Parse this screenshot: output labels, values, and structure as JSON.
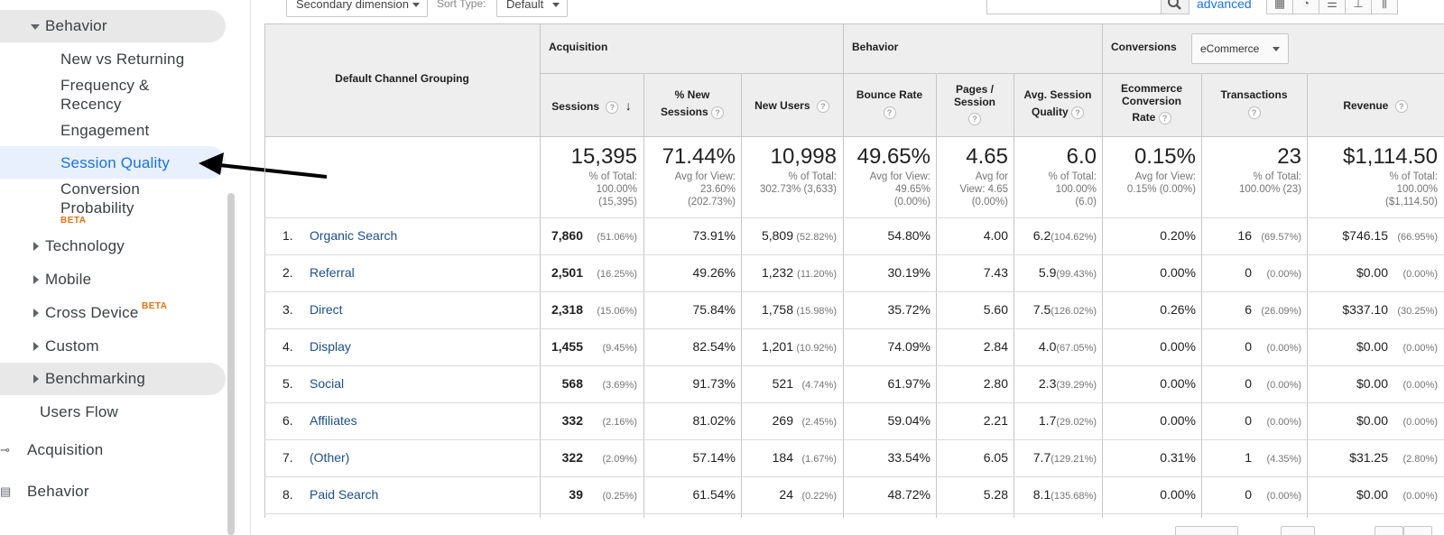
{
  "sidebar": {
    "behavior_label": "Behavior",
    "sub_items": [
      {
        "label": "New vs Returning"
      },
      {
        "label": "Frequency &"
      },
      {
        "label": "Recency"
      },
      {
        "label": "Engagement"
      },
      {
        "label": "Session Quality"
      },
      {
        "label": "Conversion"
      },
      {
        "label": "Probability"
      }
    ],
    "beta_label": "BETA",
    "collapsed_items": [
      {
        "label": "Technology"
      },
      {
        "label": "Mobile"
      },
      {
        "label": "Cross Device"
      },
      {
        "label": "Custom"
      },
      {
        "label": "Benchmarking"
      }
    ],
    "users_flow": "Users Flow",
    "acquisition": "Acquisition",
    "behavior_section": "Behavior"
  },
  "toolbar": {
    "secondary_dimension": "Secondary dimension",
    "sort_type_label": "Sort Type:",
    "sort_type_value": "Default",
    "advanced": "advanced"
  },
  "table": {
    "dimension_header": "Default Channel Grouping",
    "groups": {
      "acquisition": "Acquisition",
      "behavior": "Behavior",
      "conversions": "Conversions",
      "conversions_select": "eCommerce"
    },
    "columns": {
      "sessions": "Sessions",
      "new_sessions_1": "% New",
      "new_sessions_2": "Sessions",
      "new_users": "New Users",
      "bounce_rate": "Bounce Rate",
      "pages_session_1": "Pages /",
      "pages_session_2": "Session",
      "asq_1": "Avg. Session",
      "asq_2": "Quality",
      "ecr_1": "Ecommerce",
      "ecr_2": "Conversion",
      "ecr_3": "Rate",
      "transactions": "Transactions",
      "revenue": "Revenue"
    },
    "totals": {
      "sessions": "15,395",
      "sessions_s1": "% of Total:",
      "sessions_s2": "100.00%",
      "sessions_s3": "(15,395)",
      "new_sessions": "71.44%",
      "new_sessions_s1": "Avg for View:",
      "new_sessions_s2": "23.60%",
      "new_sessions_s3": "(202.73%)",
      "new_users": "10,998",
      "new_users_s1": "% of Total:",
      "new_users_s2": "302.73% (3,633)",
      "bounce": "49.65%",
      "bounce_s1": "Avg for View:",
      "bounce_s2": "49.65%",
      "bounce_s3": "(0.00%)",
      "pages": "4.65",
      "pages_s1": "Avg for",
      "pages_s2": "View: 4.65",
      "pages_s3": "(0.00%)",
      "asq": "6.0",
      "asq_s1": "% of Total:",
      "asq_s2": "100.00%",
      "asq_s3": "(6.0)",
      "ecr": "0.15%",
      "ecr_s1": "Avg for View:",
      "ecr_s2": "0.15% (0.00%)",
      "transactions": "23",
      "transactions_s1": "% of Total:",
      "transactions_s2": "100.00% (23)",
      "revenue": "$1,114.50",
      "revenue_s1": "% of Total:",
      "revenue_s2": "100.00%",
      "revenue_s3": "($1,114.50)"
    },
    "rows": [
      {
        "idx": "1.",
        "name": "Organic Search",
        "sessions": "7,860",
        "sessions_pct": "(51.06%)",
        "new_sessions": "73.91%",
        "new_users": "5,809",
        "new_users_pct": "(52.82%)",
        "bounce": "54.80%",
        "pages": "4.00",
        "asq": "6.2",
        "asq_pct": "(104.62%)",
        "ecr": "0.20%",
        "transactions": "16",
        "transactions_pct": "(69.57%)",
        "revenue": "$746.15",
        "revenue_pct": "(66.95%)"
      },
      {
        "idx": "2.",
        "name": "Referral",
        "sessions": "2,501",
        "sessions_pct": "(16.25%)",
        "new_sessions": "49.26%",
        "new_users": "1,232",
        "new_users_pct": "(11.20%)",
        "bounce": "30.19%",
        "pages": "7.43",
        "asq": "5.9",
        "asq_pct": "(99.43%)",
        "ecr": "0.00%",
        "transactions": "0",
        "transactions_pct": "(0.00%)",
        "revenue": "$0.00",
        "revenue_pct": "(0.00%)"
      },
      {
        "idx": "3.",
        "name": "Direct",
        "sessions": "2,318",
        "sessions_pct": "(15.06%)",
        "new_sessions": "75.84%",
        "new_users": "1,758",
        "new_users_pct": "(15.98%)",
        "bounce": "35.72%",
        "pages": "5.60",
        "asq": "7.5",
        "asq_pct": "(126.02%)",
        "ecr": "0.26%",
        "transactions": "6",
        "transactions_pct": "(26.09%)",
        "revenue": "$337.10",
        "revenue_pct": "(30.25%)"
      },
      {
        "idx": "4.",
        "name": "Display",
        "sessions": "1,455",
        "sessions_pct": "(9.45%)",
        "new_sessions": "82.54%",
        "new_users": "1,201",
        "new_users_pct": "(10.92%)",
        "bounce": "74.09%",
        "pages": "2.84",
        "asq": "4.0",
        "asq_pct": "(67.05%)",
        "ecr": "0.00%",
        "transactions": "0",
        "transactions_pct": "(0.00%)",
        "revenue": "$0.00",
        "revenue_pct": "(0.00%)"
      },
      {
        "idx": "5.",
        "name": "Social",
        "sessions": "568",
        "sessions_pct": "(3.69%)",
        "new_sessions": "91.73%",
        "new_users": "521",
        "new_users_pct": "(4.74%)",
        "bounce": "61.97%",
        "pages": "2.80",
        "asq": "2.3",
        "asq_pct": "(39.29%)",
        "ecr": "0.00%",
        "transactions": "0",
        "transactions_pct": "(0.00%)",
        "revenue": "$0.00",
        "revenue_pct": "(0.00%)"
      },
      {
        "idx": "6.",
        "name": "Affiliates",
        "sessions": "332",
        "sessions_pct": "(2.16%)",
        "new_sessions": "81.02%",
        "new_users": "269",
        "new_users_pct": "(2.45%)",
        "bounce": "59.04%",
        "pages": "2.21",
        "asq": "1.7",
        "asq_pct": "(29.02%)",
        "ecr": "0.00%",
        "transactions": "0",
        "transactions_pct": "(0.00%)",
        "revenue": "$0.00",
        "revenue_pct": "(0.00%)"
      },
      {
        "idx": "7.",
        "name": "(Other)",
        "sessions": "322",
        "sessions_pct": "(2.09%)",
        "new_sessions": "57.14%",
        "new_users": "184",
        "new_users_pct": "(1.67%)",
        "bounce": "33.54%",
        "pages": "6.05",
        "asq": "7.7",
        "asq_pct": "(129.21%)",
        "ecr": "0.31%",
        "transactions": "1",
        "transactions_pct": "(4.35%)",
        "revenue": "$31.25",
        "revenue_pct": "(2.80%)"
      },
      {
        "idx": "8.",
        "name": "Paid Search",
        "sessions": "39",
        "sessions_pct": "(0.25%)",
        "new_sessions": "61.54%",
        "new_users": "24",
        "new_users_pct": "(0.22%)",
        "bounce": "48.72%",
        "pages": "5.28",
        "asq": "8.1",
        "asq_pct": "(135.68%)",
        "ecr": "0.00%",
        "transactions": "0",
        "transactions_pct": "(0.00%)",
        "revenue": "$0.00",
        "revenue_pct": "(0.00%)"
      }
    ]
  },
  "colors": {
    "accent": "#1a73e8",
    "link": "#1a4f8b",
    "beta": "#e8710a",
    "header_bg": "#eeeeee",
    "selected_bg": "#e8f0fe"
  }
}
